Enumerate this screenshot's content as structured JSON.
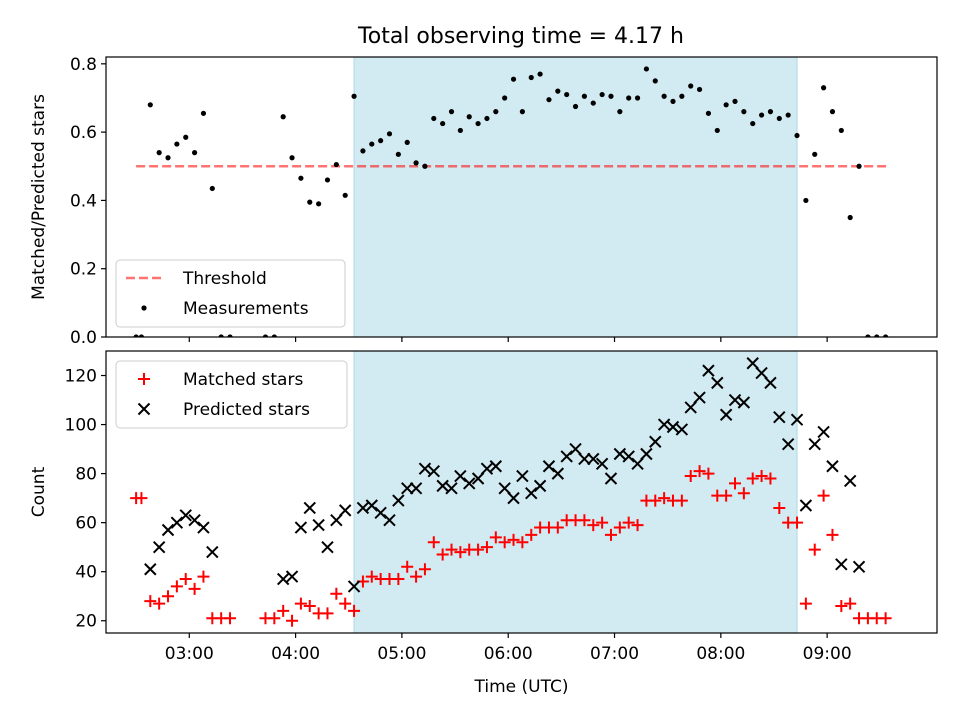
{
  "title": "Total observing time = 4.17 h",
  "colors": {
    "band": "#add8e6",
    "threshold": "#ff0000",
    "matched": "#ff0000",
    "predicted": "#000000",
    "measurements": "#000000"
  },
  "chart_data": [
    {
      "type": "scatter",
      "title": "Total observing time = 4.17 h",
      "xlabel": "",
      "ylabel": "Matched/Predicted stars",
      "xlim": [
        "02:13",
        "10:02"
      ],
      "ylim": [
        0,
        0.82
      ],
      "yticks": [
        "0.0",
        "0.2",
        "0.4",
        "0.6",
        "0.8"
      ],
      "shaded_interval": [
        "04:33",
        "08:43"
      ],
      "legend_position": "lower-left",
      "series": [
        {
          "name": "Threshold",
          "style": "dashed-line",
          "x": [
            "02:30",
            "09:35"
          ],
          "y": [
            0.5,
            0.5
          ]
        },
        {
          "name": "Measurements",
          "style": "dots",
          "x": [
            "02:30",
            "02:33",
            "02:38",
            "02:43",
            "02:48",
            "02:53",
            "02:58",
            "03:03",
            "03:08",
            "03:13",
            "03:18",
            "03:23",
            "03:43",
            "03:48",
            "03:53",
            "03:58",
            "04:03",
            "04:08",
            "04:13",
            "04:18",
            "04:23",
            "04:28",
            "04:33",
            "04:38",
            "04:43",
            "04:48",
            "04:53",
            "04:58",
            "05:03",
            "05:08",
            "05:13",
            "05:18",
            "05:23",
            "05:28",
            "05:33",
            "05:38",
            "05:43",
            "05:48",
            "05:53",
            "05:58",
            "06:03",
            "06:08",
            "06:13",
            "06:18",
            "06:23",
            "06:28",
            "06:33",
            "06:38",
            "06:43",
            "06:48",
            "06:53",
            "06:58",
            "07:03",
            "07:08",
            "07:13",
            "07:18",
            "07:23",
            "07:28",
            "07:33",
            "07:38",
            "07:43",
            "07:48",
            "07:53",
            "07:58",
            "08:03",
            "08:08",
            "08:13",
            "08:18",
            "08:23",
            "08:28",
            "08:33",
            "08:38",
            "08:43",
            "08:48",
            "08:53",
            "08:58",
            "09:03",
            "09:08",
            "09:13",
            "09:18",
            "09:23",
            "09:28",
            "09:33"
          ],
          "y": [
            0,
            0,
            0.68,
            0.54,
            0.525,
            0.565,
            0.585,
            0.54,
            0.655,
            0.435,
            0,
            0,
            0,
            0,
            0.645,
            0.525,
            0.465,
            0.395,
            0.39,
            0.46,
            0.505,
            0.415,
            0.705,
            0.545,
            0.565,
            0.575,
            0.595,
            0.535,
            0.57,
            0.51,
            0.5,
            0.64,
            0.625,
            0.66,
            0.605,
            0.645,
            0.625,
            0.64,
            0.66,
            0.7,
            0.755,
            0.66,
            0.76,
            0.77,
            0.695,
            0.72,
            0.71,
            0.675,
            0.705,
            0.685,
            0.71,
            0.705,
            0.66,
            0.7,
            0.7,
            0.785,
            0.75,
            0.705,
            0.69,
            0.705,
            0.735,
            0.725,
            0.655,
            0.605,
            0.68,
            0.69,
            0.66,
            0.625,
            0.65,
            0.66,
            0.64,
            0.65,
            0.59,
            0.4,
            0.535,
            0.73,
            0.66,
            0.605,
            0.35,
            0.5,
            0,
            0,
            0
          ]
        }
      ]
    },
    {
      "type": "scatter",
      "title": "",
      "xlabel": "Time (UTC)",
      "ylabel": "Count",
      "xlim": [
        "02:13",
        "10:02"
      ],
      "ylim": [
        15,
        130
      ],
      "xticks": [
        "03:00",
        "04:00",
        "05:00",
        "06:00",
        "07:00",
        "08:00",
        "09:00"
      ],
      "yticks": [
        "20",
        "40",
        "60",
        "80",
        "100",
        "120"
      ],
      "shaded_interval": [
        "04:33",
        "08:43"
      ],
      "legend_position": "upper-left",
      "series": [
        {
          "name": "Matched stars",
          "marker": "+",
          "x": [
            "02:30",
            "02:33",
            "02:38",
            "02:43",
            "02:48",
            "02:53",
            "02:58",
            "03:03",
            "03:08",
            "03:13",
            "03:18",
            "03:23",
            "03:43",
            "03:48",
            "03:53",
            "03:58",
            "04:03",
            "04:08",
            "04:13",
            "04:18",
            "04:23",
            "04:28",
            "04:33",
            "04:38",
            "04:43",
            "04:48",
            "04:53",
            "04:58",
            "05:03",
            "05:08",
            "05:13",
            "05:18",
            "05:23",
            "05:28",
            "05:33",
            "05:38",
            "05:43",
            "05:48",
            "05:53",
            "05:58",
            "06:03",
            "06:08",
            "06:13",
            "06:18",
            "06:23",
            "06:28",
            "06:33",
            "06:38",
            "06:43",
            "06:48",
            "06:53",
            "06:58",
            "07:03",
            "07:08",
            "07:13",
            "07:18",
            "07:23",
            "07:28",
            "07:33",
            "07:38",
            "07:43",
            "07:48",
            "07:53",
            "07:58",
            "08:03",
            "08:08",
            "08:13",
            "08:18",
            "08:23",
            "08:28",
            "08:33",
            "08:38",
            "08:43",
            "08:48",
            "08:53",
            "08:58",
            "09:03",
            "09:08",
            "09:13",
            "09:18",
            "09:23",
            "09:28",
            "09:33"
          ],
          "y": [
            70,
            70,
            28,
            27,
            30,
            34,
            37,
            33,
            38,
            21,
            21,
            21,
            21,
            21,
            24,
            20,
            27,
            26,
            23,
            23,
            31,
            27,
            24,
            36,
            38,
            37,
            37,
            37,
            42,
            38,
            41,
            52,
            47,
            49,
            48,
            49,
            49,
            50,
            54,
            52,
            53,
            52,
            55,
            58,
            58,
            58,
            61,
            61,
            61,
            59,
            60,
            55,
            58,
            60,
            59,
            69,
            69,
            70,
            69,
            69,
            79,
            81,
            80,
            71,
            71,
            76,
            72,
            78,
            79,
            78,
            66,
            60,
            60,
            27,
            49,
            71,
            55,
            26,
            27,
            21,
            21,
            21,
            21
          ]
        },
        {
          "name": "Predicted stars",
          "marker": "x",
          "x": [
            "02:38",
            "02:43",
            "02:48",
            "02:53",
            "02:58",
            "03:03",
            "03:08",
            "03:13",
            "03:53",
            "03:58",
            "04:03",
            "04:08",
            "04:13",
            "04:18",
            "04:23",
            "04:28",
            "04:33",
            "04:38",
            "04:43",
            "04:48",
            "04:53",
            "04:58",
            "05:03",
            "05:08",
            "05:13",
            "05:18",
            "05:23",
            "05:28",
            "05:33",
            "05:38",
            "05:43",
            "05:48",
            "05:53",
            "05:58",
            "06:03",
            "06:08",
            "06:13",
            "06:18",
            "06:23",
            "06:28",
            "06:33",
            "06:38",
            "06:43",
            "06:48",
            "06:53",
            "06:58",
            "07:03",
            "07:08",
            "07:13",
            "07:18",
            "07:23",
            "07:28",
            "07:33",
            "07:38",
            "07:43",
            "07:48",
            "07:53",
            "07:58",
            "08:03",
            "08:08",
            "08:13",
            "08:18",
            "08:23",
            "08:28",
            "08:33",
            "08:38",
            "08:43",
            "08:48",
            "08:53",
            "08:58",
            "09:03",
            "09:08",
            "09:13",
            "09:18"
          ],
          "y": [
            41,
            50,
            57,
            60,
            63,
            61,
            58,
            48,
            37,
            38,
            58,
            66,
            59,
            50,
            61,
            65,
            34,
            66,
            67,
            64,
            61,
            69,
            74,
            74,
            82,
            81,
            75,
            74,
            79,
            76,
            78,
            82,
            83,
            74,
            70,
            79,
            72,
            75,
            83,
            80,
            87,
            90,
            86,
            86,
            84,
            78,
            88,
            87,
            84,
            88,
            93,
            100,
            99,
            98,
            107,
            111,
            122,
            117,
            104,
            110,
            109,
            125,
            121,
            117,
            103,
            92,
            102,
            67,
            92,
            97,
            83,
            43,
            77,
            42
          ]
        }
      ]
    }
  ]
}
